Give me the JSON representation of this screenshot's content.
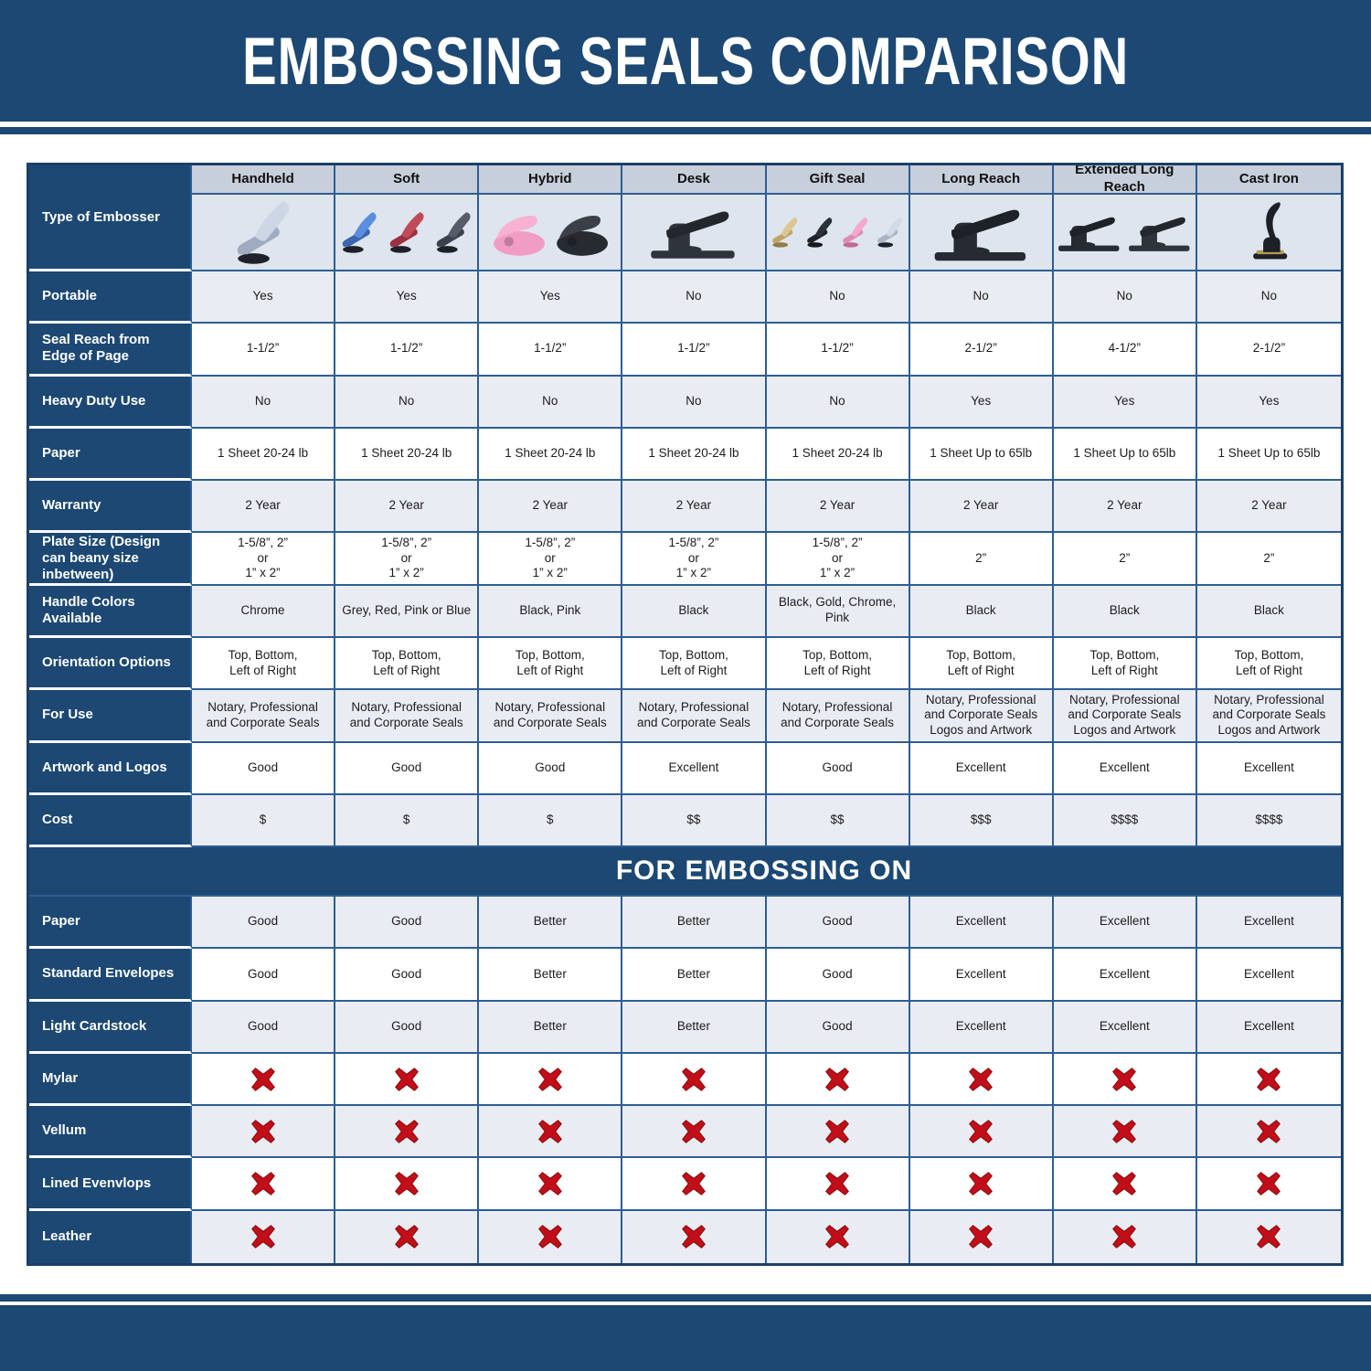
{
  "title": "EMBOSSING SEALS COMPARISON",
  "colors": {
    "navy": "#1C4873",
    "grid_line": "#2E5D94",
    "header_cell_bg": "#C7CFDB",
    "image_row_bg": "#DFE5EE",
    "alt_row_bg": "#E9EDF3",
    "red_x": "#C20E18"
  },
  "chart_data": {
    "type": "table",
    "corner_label": "Type of Embosser",
    "columns": [
      {
        "label": "Handheld",
        "image": "chrome-handheld-embosser-photo"
      },
      {
        "label": "Soft",
        "image": "soft-handle-embossers-photo"
      },
      {
        "label": "Hybrid",
        "image": "hybrid-embossers-photo"
      },
      {
        "label": "Desk",
        "image": "desk-embosser-photo"
      },
      {
        "label": "Gift Seal",
        "image": "gift-seal-embossers-photo"
      },
      {
        "label": "Long Reach",
        "image": "long-reach-embosser-photo"
      },
      {
        "label": "Extended Long Reach",
        "image": "extended-long-reach-embossers-photo"
      },
      {
        "label": "Cast Iron",
        "image": "cast-iron-embosser-photo"
      }
    ],
    "spec_rows": [
      {
        "label": "Portable",
        "values": [
          "Yes",
          "Yes",
          "Yes",
          "No",
          "No",
          "No",
          "No",
          "No"
        ]
      },
      {
        "label": "Seal Reach from Edge of Page",
        "values": [
          "1-1/2”",
          "1-1/2”",
          "1-1/2”",
          "1-1/2”",
          "1-1/2”",
          "2-1/2”",
          "4-1/2”",
          "2-1/2”"
        ]
      },
      {
        "label": "Heavy Duty Use",
        "values": [
          "No",
          "No",
          "No",
          "No",
          "No",
          "Yes",
          "Yes",
          "Yes"
        ]
      },
      {
        "label": "Paper",
        "values": [
          "1 Sheet 20-24 lb",
          "1 Sheet 20-24 lb",
          "1 Sheet 20-24 lb",
          "1 Sheet 20-24 lb",
          "1 Sheet 20-24 lb",
          "1 Sheet Up to 65lb",
          "1 Sheet Up to 65lb",
          "1 Sheet Up to 65lb"
        ]
      },
      {
        "label": "Warranty",
        "values": [
          "2 Year",
          "2 Year",
          "2 Year",
          "2 Year",
          "2 Year",
          "2 Year",
          "2 Year",
          "2 Year"
        ]
      },
      {
        "label": "Plate Size (Design can beany size inbetween)",
        "values": [
          "1-5/8”, 2”\nor\n1” x 2”",
          "1-5/8”, 2”\nor\n1” x 2”",
          "1-5/8”, 2”\nor\n1” x 2”",
          "1-5/8”, 2”\nor\n1” x 2”",
          "1-5/8”, 2”\nor\n1” x 2”",
          "2”",
          "2”",
          "2”"
        ]
      },
      {
        "label": "Handle Colors Available",
        "values": [
          "Chrome",
          "Grey, Red, Pink or Blue",
          "Black, Pink",
          "Black",
          "Black, Gold, Chrome, Pink",
          "Black",
          "Black",
          "Black"
        ]
      },
      {
        "label": "Orientation Options",
        "values": [
          "Top, Bottom,\nLeft of Right",
          "Top, Bottom,\nLeft of Right",
          "Top, Bottom,\nLeft of Right",
          "Top, Bottom,\nLeft of Right",
          "Top, Bottom,\nLeft of Right",
          "Top, Bottom,\nLeft of Right",
          "Top, Bottom,\nLeft of Right",
          "Top, Bottom,\nLeft of Right"
        ]
      },
      {
        "label": "For Use",
        "values": [
          "Notary, Professional\nand Corporate Seals",
          "Notary, Professional\nand Corporate Seals",
          "Notary, Professional\nand Corporate Seals",
          "Notary, Professional\nand Corporate Seals",
          "Notary, Professional\nand Corporate Seals",
          "Notary, Professional\nand Corporate Seals\nLogos and Artwork",
          "Notary, Professional\nand Corporate Seals\nLogos and Artwork",
          "Notary, Professional\nand Corporate Seals\nLogos and Artwork"
        ]
      },
      {
        "label": "Artwork and Logos",
        "values": [
          "Good",
          "Good",
          "Good",
          "Excellent",
          "Good",
          "Excellent",
          "Excellent",
          "Excellent"
        ]
      },
      {
        "label": "Cost",
        "values": [
          "$",
          "$",
          "$",
          "$$",
          "$$",
          "$$$",
          "$$$$",
          "$$$$"
        ]
      }
    ],
    "embossing_section_label": "FOR EMBOSSING ON",
    "embossing_rows": [
      {
        "label": "Paper",
        "values": [
          "Good",
          "Good",
          "Better",
          "Better",
          "Good",
          "Excellent",
          "Excellent",
          "Excellent"
        ]
      },
      {
        "label": "Standard Envelopes",
        "values": [
          "Good",
          "Good",
          "Better",
          "Better",
          "Good",
          "Excellent",
          "Excellent",
          "Excellent"
        ]
      },
      {
        "label": "Light Cardstock",
        "values": [
          "Good",
          "Good",
          "Better",
          "Better",
          "Good",
          "Excellent",
          "Excellent",
          "Excellent"
        ]
      },
      {
        "label": "Mylar",
        "values": [
          "red-x-icon",
          "red-x-icon",
          "red-x-icon",
          "red-x-icon",
          "red-x-icon",
          "red-x-icon",
          "red-x-icon",
          "red-x-icon"
        ]
      },
      {
        "label": "Vellum",
        "values": [
          "red-x-icon",
          "red-x-icon",
          "red-x-icon",
          "red-x-icon",
          "red-x-icon",
          "red-x-icon",
          "red-x-icon",
          "red-x-icon"
        ]
      },
      {
        "label": "Lined Evenvlops",
        "values": [
          "red-x-icon",
          "red-x-icon",
          "red-x-icon",
          "red-x-icon",
          "red-x-icon",
          "red-x-icon",
          "red-x-icon",
          "red-x-icon"
        ]
      },
      {
        "label": "Leather",
        "values": [
          "red-x-icon",
          "red-x-icon",
          "red-x-icon",
          "red-x-icon",
          "red-x-icon",
          "red-x-icon",
          "red-x-icon",
          "red-x-icon"
        ]
      }
    ],
    "not_supported_marker": "red-x-icon"
  }
}
